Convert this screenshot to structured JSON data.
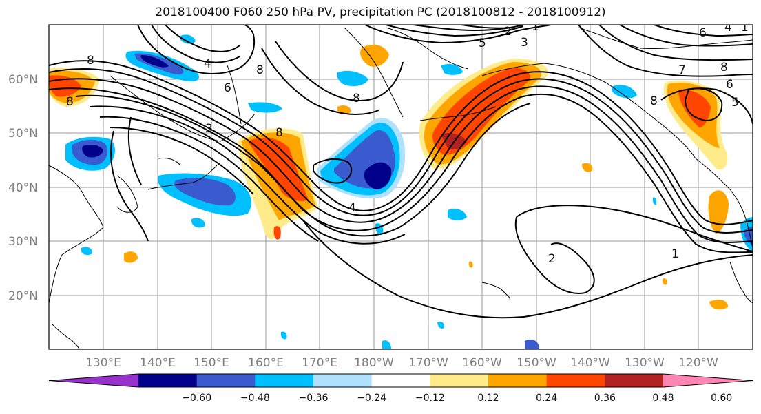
{
  "title": "2018100400 F060 250 hPa PV, precipitation PC (2018100812 - 2018100912)",
  "lat_ticks": [
    "60°N",
    "50°N",
    "40°N",
    "30°N",
    "20°N"
  ],
  "lon_ticks": [
    "130°E",
    "140°E",
    "150°E",
    "160°E",
    "170°E",
    "180°W",
    "170°W",
    "160°W",
    "150°W",
    "140°W",
    "130°W",
    "120°W"
  ],
  "colorbar": {
    "labels": [
      "−0.60",
      "−0.48",
      "−0.36",
      "−0.24",
      "−0.12",
      "0.12",
      "0.24",
      "0.36",
      "0.48",
      "0.60"
    ],
    "colors": [
      "#9932cc",
      "#00008b",
      "#3a5bd0",
      "#00bfff",
      "#b0e2ff",
      "#ffffff",
      "#ffeb8a",
      "#ffa500",
      "#ff4500",
      "#b22222",
      "#ff85b3"
    ]
  },
  "contour_labels": [
    "8",
    "8",
    "4",
    "6",
    "3",
    "8",
    "8",
    "4",
    "2",
    "1",
    "3",
    "5",
    "8",
    "6",
    "5",
    "1",
    "6",
    "7",
    "8",
    "8",
    "2",
    "1",
    "4"
  ]
}
